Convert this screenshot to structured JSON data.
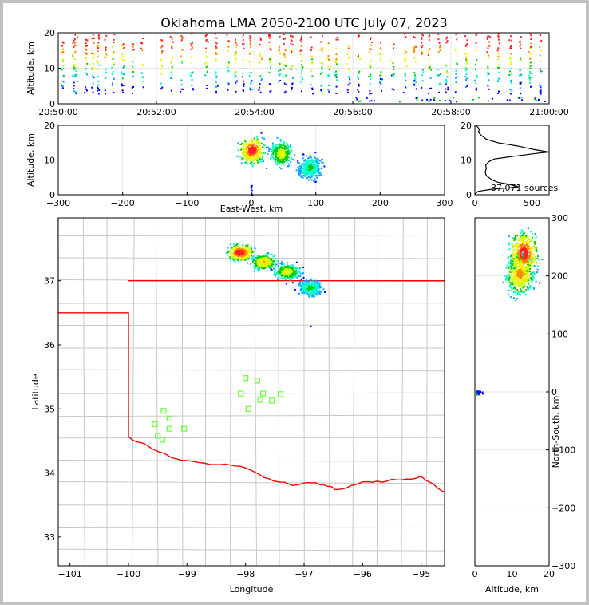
{
  "chart_data": [
    {
      "type": "scatter",
      "panel": "time-height",
      "title": "Oklahoma LMA 2050-2100 UTC July 07, 2023",
      "ylabel": "Altitude, km",
      "xlabel": "",
      "x_ticks": [
        "20:50:00",
        "20:52:00",
        "20:54:00",
        "20:56:00",
        "20:58:00",
        "21:00:00"
      ],
      "y_ticks": [
        "0",
        "10",
        "20"
      ],
      "xlim": [
        "20:50:00",
        "21:00:00"
      ],
      "ylim": [
        0,
        20
      ],
      "grid": true,
      "colormap": "time (blue to red)",
      "flash_columns_minutes": [
        0.08,
        0.3,
        0.35,
        0.55,
        0.7,
        0.8,
        0.95,
        1.1,
        1.3,
        1.5,
        1.7,
        2.1,
        2.3,
        2.5,
        2.7,
        3.0,
        3.2,
        3.45,
        3.6,
        3.75,
        3.9,
        4.1,
        4.3,
        4.5,
        4.6,
        4.75,
        4.95,
        5.15,
        5.35,
        5.5,
        5.65,
        5.9,
        6.1,
        6.35,
        6.55,
        6.8,
        7.05,
        7.25,
        7.4,
        7.55,
        7.75,
        7.9,
        8.1,
        8.3,
        8.5,
        8.75,
        8.95,
        9.2,
        9.4,
        9.6,
        9.8
      ]
    },
    {
      "type": "heatmap",
      "panel": "east-west-altitude",
      "xlabel": "East-West, km",
      "ylabel": "Altitude, km",
      "x_ticks": [
        "−300",
        "−200",
        "−100",
        "0",
        "100",
        "200",
        "300"
      ],
      "y_ticks": [
        "0",
        "10",
        "20"
      ],
      "xlim": [
        -300,
        300
      ],
      "ylim": [
        0,
        20
      ],
      "grid": true,
      "density_peaks": [
        {
          "x": 0,
          "z": 13,
          "level": 1.0
        },
        {
          "x": 45,
          "z": 12,
          "level": 0.6
        },
        {
          "x": 90,
          "z": 8,
          "level": 0.4
        }
      ],
      "extent_x_km": [
        -30,
        120
      ],
      "extent_z_km": [
        3,
        20
      ]
    },
    {
      "type": "line",
      "panel": "altitude-histogram",
      "annotation": "37,071 sources",
      "x_ticks": [
        "0",
        "500"
      ],
      "y_ticks": [
        "0",
        "10",
        "20"
      ],
      "xlim": [
        0,
        650
      ],
      "ylim": [
        0,
        20
      ],
      "grid": true,
      "points": [
        [
          0,
          0
        ],
        [
          10,
          0.5
        ],
        [
          30,
          1
        ],
        [
          150,
          1.6
        ],
        [
          300,
          2
        ],
        [
          380,
          2.3
        ],
        [
          300,
          3
        ],
        [
          200,
          3.6
        ],
        [
          150,
          4.3
        ],
        [
          100,
          5.5
        ],
        [
          90,
          6.5
        ],
        [
          100,
          7.5
        ],
        [
          95,
          8.5
        ],
        [
          120,
          9.5
        ],
        [
          170,
          10.3
        ],
        [
          320,
          11
        ],
        [
          560,
          12
        ],
        [
          650,
          12.3
        ],
        [
          520,
          13
        ],
        [
          380,
          14
        ],
        [
          200,
          15
        ],
        [
          100,
          16
        ],
        [
          60,
          17
        ],
        [
          30,
          18
        ],
        [
          40,
          18.8
        ],
        [
          25,
          19.5
        ],
        [
          10,
          20
        ]
      ]
    },
    {
      "type": "heatmap",
      "panel": "plan-view-map",
      "xlabel": "Longitude",
      "ylabel": "Latitude",
      "x_ticks": [
        "−101",
        "−100",
        "−99",
        "−98",
        "−97",
        "−96",
        "−95"
      ],
      "y_ticks": [
        "33",
        "34",
        "35",
        "36",
        "37"
      ],
      "xlim": [
        -101.2,
        -94.6
      ],
      "ylim": [
        32.55,
        37.98
      ],
      "grid": true,
      "density_peaks": [
        {
          "lon": -98.1,
          "lat": 37.45,
          "level": 1.0
        },
        {
          "lon": -97.7,
          "lat": 37.3,
          "level": 0.7
        },
        {
          "lon": -97.3,
          "lat": 37.15,
          "level": 0.6
        },
        {
          "lon": -96.9,
          "lat": 36.9,
          "level": 0.4
        }
      ],
      "stations": [
        {
          "lon": -99.4,
          "lat": 34.97
        },
        {
          "lon": -99.3,
          "lat": 34.85
        },
        {
          "lon": -99.55,
          "lat": 34.76
        },
        {
          "lon": -99.3,
          "lat": 34.69
        },
        {
          "lon": -99.05,
          "lat": 34.69
        },
        {
          "lon": -99.5,
          "lat": 34.58
        },
        {
          "lon": -99.42,
          "lat": 34.52
        },
        {
          "lon": -98.0,
          "lat": 35.48
        },
        {
          "lon": -97.8,
          "lat": 35.44
        },
        {
          "lon": -98.08,
          "lat": 35.24
        },
        {
          "lon": -97.7,
          "lat": 35.24
        },
        {
          "lon": -97.4,
          "lat": 35.23
        },
        {
          "lon": -97.75,
          "lat": 35.14
        },
        {
          "lon": -97.55,
          "lat": 35.13
        },
        {
          "lon": -97.95,
          "lat": 35.0
        }
      ],
      "border_color": "#ff0000",
      "county_line_color": "#c8c8c8",
      "station_color": "#66ff33"
    },
    {
      "type": "heatmap",
      "panel": "altitude-north-south",
      "xlabel": "Altitude, km",
      "ylabel": "North-South, km",
      "x_ticks": [
        "0",
        "10",
        "20"
      ],
      "y_ticks": [
        "−300",
        "−200",
        "−100",
        "0",
        "100",
        "200",
        "300"
      ],
      "xlim": [
        0,
        20
      ],
      "ylim": [
        -300,
        300
      ],
      "grid": true,
      "density_peaks": [
        {
          "z": 13,
          "y": 240,
          "level": 1.0
        },
        {
          "z": 12,
          "y": 205,
          "level": 0.8
        }
      ],
      "extent_z_km": [
        3,
        20
      ],
      "extent_y_km": [
        110,
        285
      ]
    }
  ]
}
